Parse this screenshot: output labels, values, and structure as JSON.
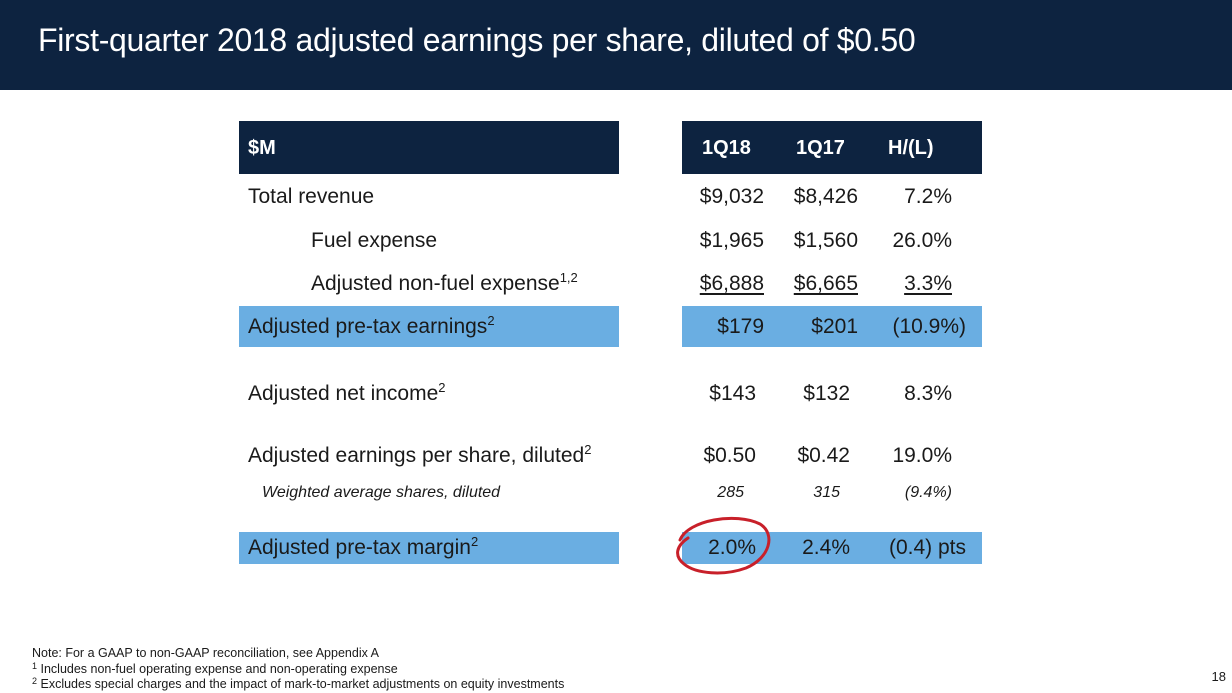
{
  "title": "First-quarter 2018 adjusted earnings per share, diluted of $0.50",
  "table": {
    "headers": {
      "label": "$M",
      "c1": "1Q18",
      "c2": "1Q17",
      "c3": "H/(L)"
    },
    "rows": [
      {
        "label": "Total revenue",
        "c1": "$9,032",
        "c2": "$8,426",
        "c3": "7.2%"
      },
      {
        "label": "Fuel expense",
        "c1": "$1,965",
        "c2": "$1,560",
        "c3": "26.0%"
      },
      {
        "label": "Adjusted non-fuel expense",
        "sup": "1,2",
        "c1": "$6,888",
        "c2": "$6,665",
        "c3": "3.3%"
      },
      {
        "label": "Adjusted pre-tax earnings",
        "sup": "2",
        "c1": "$179",
        "c2": "$201",
        "c3": "(10.9%)"
      },
      {
        "label": "Adjusted net income",
        "sup": "2",
        "c1": "$143",
        "c2": "$132",
        "c3": "8.3%"
      },
      {
        "label": "Adjusted earnings per share, diluted",
        "sup": "2",
        "c1": "$0.50",
        "c2": "$0.42",
        "c3": "19.0%"
      },
      {
        "label": "Weighted average shares, diluted",
        "c1": "285",
        "c2": "315",
        "c3": "(9.4%)"
      },
      {
        "label": "Adjusted pre-tax margin",
        "sup": "2",
        "c1": "2.0%",
        "c2": "2.4%",
        "c3": "(0.4) pts"
      }
    ]
  },
  "colors": {
    "navy": "#0d2340",
    "highlight": "#6aaee2",
    "annotation": "#c8202a"
  },
  "notes": {
    "note": "Note: For a GAAP to non-GAAP reconciliation, see Appendix A",
    "f1_mark": "1",
    "f1": " Includes non-fuel operating expense and non-operating expense",
    "f2_mark": "2",
    "f2": " Excludes special charges and the impact of mark-to-market adjustments on equity investments"
  },
  "page_number": "18"
}
